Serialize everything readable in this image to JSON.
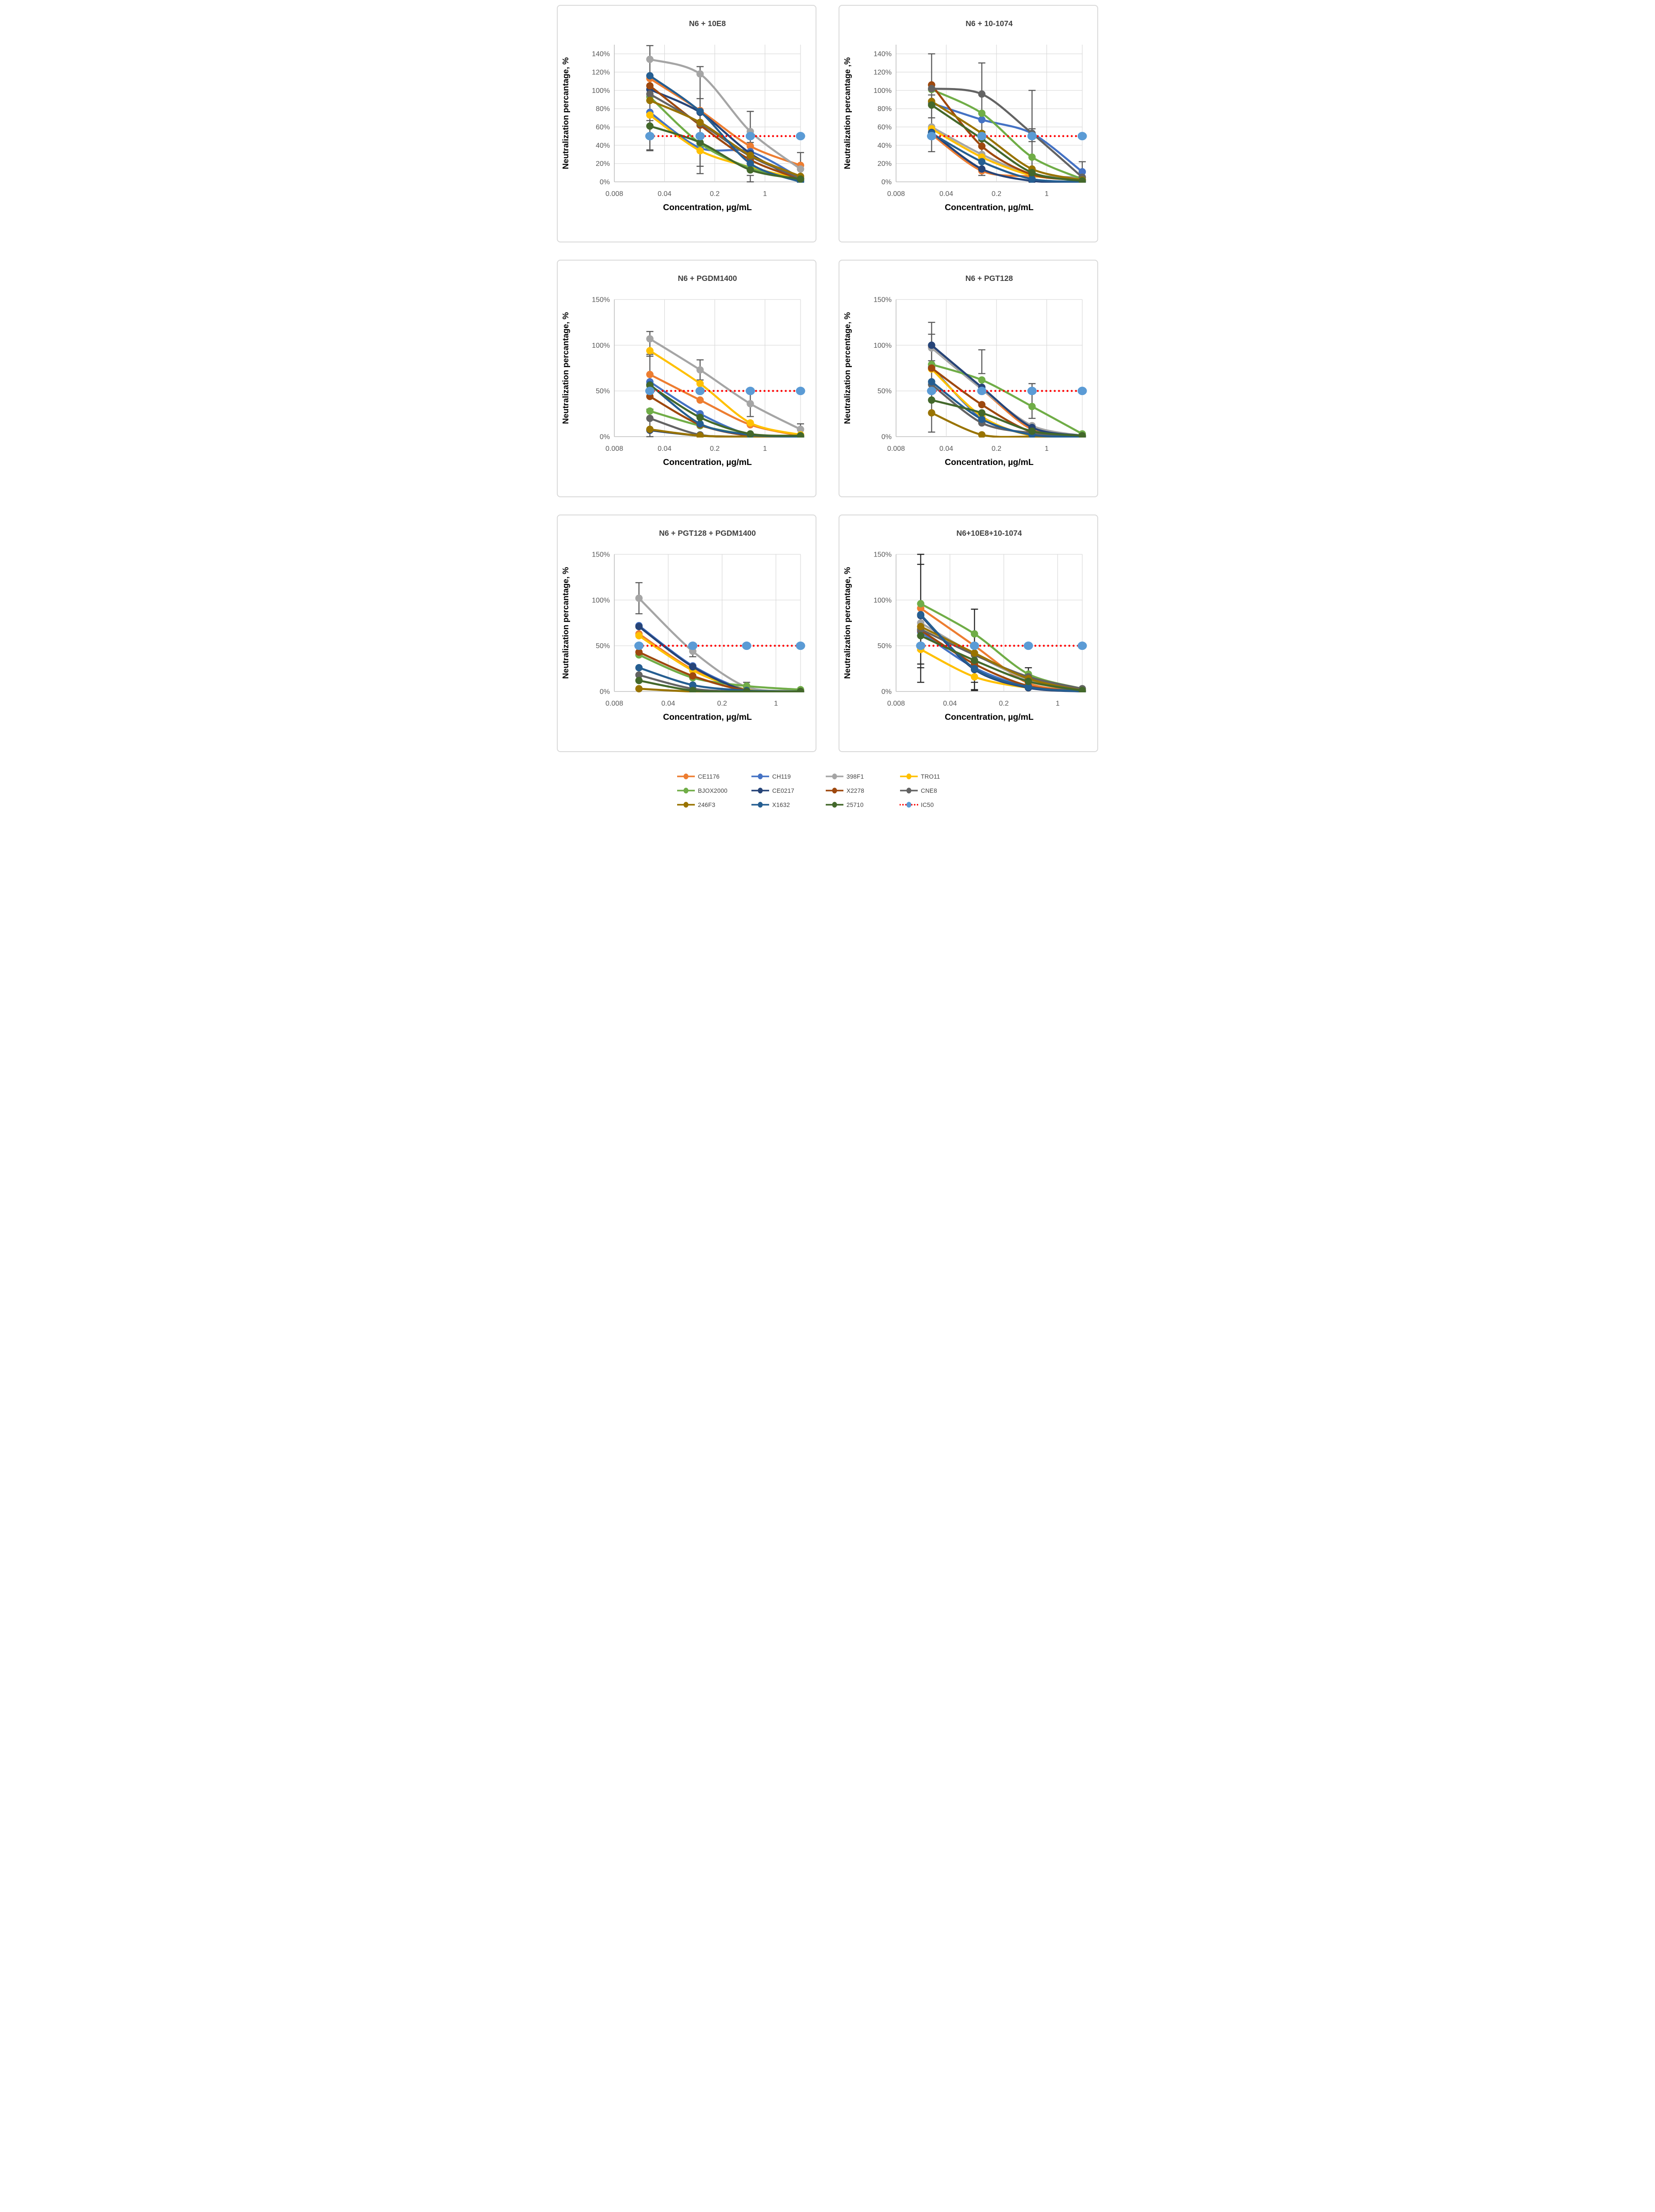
{
  "figure_title": "",
  "xlabel_shared": "Concentration, µg/mL",
  "legend": {
    "items": [
      {
        "label": "CE1176",
        "color": "#ED7D31",
        "line": "solid"
      },
      {
        "label": "CH119",
        "color": "#4472C4",
        "line": "solid"
      },
      {
        "label": "398F1",
        "color": "#A5A5A5",
        "line": "solid"
      },
      {
        "label": "TRO11",
        "color": "#FFC000",
        "line": "solid"
      },
      {
        "label": "BJOX2000",
        "color": "#70AD47",
        "line": "solid"
      },
      {
        "label": "CE0217",
        "color": "#264478",
        "line": "solid"
      },
      {
        "label": "X2278",
        "color": "#9E480E",
        "line": "solid"
      },
      {
        "label": "CNE8",
        "color": "#636363",
        "line": "solid"
      },
      {
        "label": "246F3",
        "color": "#997300",
        "line": "solid"
      },
      {
        "label": "X1632",
        "color": "#255E91",
        "line": "solid"
      },
      {
        "label": "25710",
        "color": "#43682B",
        "line": "solid"
      },
      {
        "label": "IC50",
        "color": "#FF0000",
        "line": "dotted",
        "marker_color": "#5B9BD5"
      }
    ]
  },
  "style": {
    "gridline_color": "#D9D9D9",
    "axis_color": "#BFBFBF",
    "tick_label_color": "#595959",
    "title_color": "#404040",
    "axis_title_color": "#000000"
  },
  "chart_data": [
    {
      "type": "line",
      "title": "N6 + 10E8",
      "ylabel": "Neutralization percantage, %",
      "xlabel": "Concentration, µg/mL",
      "x_scale": "log",
      "xlim": [
        0.008,
        3.125
      ],
      "x_ticks": [
        0.008,
        0.04,
        0.2,
        1
      ],
      "x_tick_labels": [
        "0.008",
        "0.04",
        "0.2",
        "1"
      ],
      "ylim": [
        0,
        150
      ],
      "y_ticks": [
        0,
        20,
        40,
        60,
        80,
        100,
        120,
        140
      ],
      "x": [
        0.025,
        0.125,
        0.625,
        3.125
      ],
      "error_color": "#595959",
      "error_bars": [
        {
          "x_index": 0,
          "low": 35,
          "high": 149
        },
        {
          "x_index": 0,
          "low": 34,
          "high": 67
        },
        {
          "x_index": 1,
          "low": 9,
          "high": 126
        },
        {
          "x_index": 1,
          "low": 17,
          "high": 91
        },
        {
          "x_index": 2,
          "low": 43,
          "high": 77
        },
        {
          "x_index": 2,
          "low": 0,
          "high": 7
        },
        {
          "x_index": 3,
          "low": 3,
          "high": 32
        },
        {
          "x_index": 3,
          "low": 0,
          "high": 6
        }
      ],
      "series": [
        {
          "name": "CE1176",
          "values": [
            113,
            78,
            39,
            18
          ]
        },
        {
          "name": "CH119",
          "values": [
            76,
            37,
            33,
            4
          ]
        },
        {
          "name": "398F1",
          "values": [
            134,
            118,
            55,
            14
          ]
        },
        {
          "name": "TRO11",
          "values": [
            73,
            34,
            16,
            3
          ]
        },
        {
          "name": "BJOX2000",
          "values": [
            93,
            42,
            15,
            2
          ]
        },
        {
          "name": "CE0217",
          "values": [
            101,
            76,
            31,
            1
          ]
        },
        {
          "name": "X2278",
          "values": [
            105,
            62,
            24,
            3
          ]
        },
        {
          "name": "CNE8",
          "values": [
            96,
            64,
            28,
            4
          ]
        },
        {
          "name": "246F3",
          "values": [
            89,
            65,
            29,
            6
          ]
        },
        {
          "name": "X1632",
          "values": [
            116,
            77,
            20,
            0
          ]
        },
        {
          "name": "25710",
          "values": [
            61,
            43,
            13,
            3
          ]
        },
        {
          "name": "IC50",
          "values": [
            50,
            50,
            50,
            50
          ]
        }
      ]
    },
    {
      "type": "line",
      "title": "N6 + 10-1074",
      "ylabel": "Neutralization percantage ,%",
      "xlabel": "Concentration, µg/mL",
      "x_scale": "log",
      "xlim": [
        0.008,
        3.125
      ],
      "x_ticks": [
        0.008,
        0.04,
        0.2,
        1
      ],
      "x_tick_labels": [
        "0.008",
        "0.04",
        "0.2",
        "1"
      ],
      "ylim": [
        0,
        150
      ],
      "y_ticks": [
        0,
        20,
        40,
        60,
        80,
        100,
        120,
        140
      ],
      "x": [
        0.025,
        0.125,
        0.625,
        3.125
      ],
      "error_color": "#595959",
      "error_bars": [
        {
          "x_index": 0,
          "low": 33,
          "high": 140
        },
        {
          "x_index": 0,
          "low": 70,
          "high": 95
        },
        {
          "x_index": 1,
          "low": 7,
          "high": 130
        },
        {
          "x_index": 1,
          "low": 45,
          "high": 55
        },
        {
          "x_index": 2,
          "low": 0,
          "high": 100
        },
        {
          "x_index": 2,
          "low": 44,
          "high": 58
        },
        {
          "x_index": 3,
          "low": 0,
          "high": 22
        }
      ],
      "series": [
        {
          "name": "CE1176",
          "values": [
            52,
            12,
            6,
            5
          ]
        },
        {
          "name": "CH119",
          "values": [
            86,
            68,
            53,
            11
          ]
        },
        {
          "name": "398F1",
          "values": [
            60,
            30,
            8,
            5
          ]
        },
        {
          "name": "TRO11",
          "values": [
            58,
            27,
            7,
            2
          ]
        },
        {
          "name": "BJOX2000",
          "values": [
            101,
            75,
            27,
            3
          ]
        },
        {
          "name": "CE0217",
          "values": [
            54,
            14,
            1,
            0
          ]
        },
        {
          "name": "X2278",
          "values": [
            106,
            39,
            8,
            2
          ]
        },
        {
          "name": "CNE8",
          "values": [
            102,
            96,
            53,
            5
          ]
        },
        {
          "name": "246F3",
          "values": [
            88,
            53,
            14,
            2
          ]
        },
        {
          "name": "X1632",
          "values": [
            53,
            22,
            3,
            0
          ]
        },
        {
          "name": "25710",
          "values": [
            84,
            47,
            10,
            1
          ]
        },
        {
          "name": "IC50",
          "values": [
            50,
            50,
            50,
            50
          ]
        }
      ]
    },
    {
      "type": "line",
      "title": "N6 + PGDM1400",
      "ylabel": "Neutralization percantage, %",
      "xlabel": "Concentration, µg/mL",
      "x_scale": "log",
      "xlim": [
        0.008,
        3.125
      ],
      "x_ticks": [
        0.008,
        0.04,
        0.2,
        1
      ],
      "x_tick_labels": [
        "0.008",
        "0.04",
        "0.2",
        "1"
      ],
      "ylim": [
        0,
        150
      ],
      "y_ticks": [
        0,
        50,
        100,
        150
      ],
      "x": [
        0.025,
        0.125,
        0.625,
        3.125
      ],
      "error_color": "#595959",
      "error_bars": [
        {
          "x_index": 0,
          "low": 88,
          "high": 115
        },
        {
          "x_index": 0,
          "low": 60,
          "high": 90
        },
        {
          "x_index": 0,
          "low": 0,
          "high": 30
        },
        {
          "x_index": 1,
          "low": 62,
          "high": 84
        },
        {
          "x_index": 2,
          "low": 22,
          "high": 50
        },
        {
          "x_index": 3,
          "low": 3,
          "high": 14
        }
      ],
      "series": [
        {
          "name": "CE1176",
          "values": [
            68,
            40,
            13,
            1
          ]
        },
        {
          "name": "CH119",
          "values": [
            60,
            25,
            2,
            0
          ]
        },
        {
          "name": "398F1",
          "values": [
            107,
            73,
            36,
            8
          ]
        },
        {
          "name": "TRO11",
          "values": [
            94,
            58,
            15,
            2
          ]
        },
        {
          "name": "BJOX2000",
          "values": [
            28,
            12,
            2,
            0
          ]
        },
        {
          "name": "CE0217",
          "values": [
            7,
            1,
            0,
            0
          ]
        },
        {
          "name": "X2278",
          "values": [
            44,
            13,
            1,
            0
          ]
        },
        {
          "name": "CNE8",
          "values": [
            20,
            2,
            0,
            0
          ]
        },
        {
          "name": "246F3",
          "values": [
            8,
            1,
            0,
            0
          ]
        },
        {
          "name": "X1632",
          "values": [
            57,
            14,
            2,
            0
          ]
        },
        {
          "name": "25710",
          "values": [
            56,
            21,
            3,
            1
          ]
        },
        {
          "name": "IC50",
          "values": [
            50,
            50,
            50,
            50
          ]
        }
      ]
    },
    {
      "type": "line",
      "title": "N6 + PGT128",
      "ylabel": "Neutralization percentage, %",
      "xlabel": "Concentration, µg/mL",
      "x_scale": "log",
      "xlim": [
        0.008,
        3.125
      ],
      "x_ticks": [
        0.008,
        0.04,
        0.2,
        1
      ],
      "x_tick_labels": [
        "0.008",
        "0.04",
        "0.2",
        "1"
      ],
      "ylim": [
        0,
        150
      ],
      "y_ticks": [
        0,
        50,
        100,
        150
      ],
      "x": [
        0.025,
        0.125,
        0.625,
        3.125
      ],
      "error_color": "#595959",
      "error_bars": [
        {
          "x_index": 0,
          "low": 5,
          "high": 125
        },
        {
          "x_index": 0,
          "low": 83,
          "high": 112
        },
        {
          "x_index": 1,
          "low": 69,
          "high": 95
        },
        {
          "x_index": 2,
          "low": 20,
          "high": 58
        }
      ],
      "series": [
        {
          "name": "CE1176",
          "values": [
            98,
            52,
            8,
            1
          ]
        },
        {
          "name": "CH119",
          "values": [
            76,
            20,
            2,
            0
          ]
        },
        {
          "name": "398F1",
          "values": [
            97,
            52,
            12,
            1
          ]
        },
        {
          "name": "TRO11",
          "values": [
            74,
            22,
            1,
            0
          ]
        },
        {
          "name": "BJOX2000",
          "values": [
            79,
            62,
            33,
            3
          ]
        },
        {
          "name": "CE0217",
          "values": [
            100,
            54,
            10,
            1
          ]
        },
        {
          "name": "X2278",
          "values": [
            75,
            35,
            5,
            0
          ]
        },
        {
          "name": "CNE8",
          "values": [
            57,
            15,
            4,
            1
          ]
        },
        {
          "name": "246F3",
          "values": [
            26,
            2,
            0,
            0
          ]
        },
        {
          "name": "X1632",
          "values": [
            60,
            19,
            2,
            0
          ]
        },
        {
          "name": "25710",
          "values": [
            40,
            26,
            6,
            1
          ]
        },
        {
          "name": "IC50",
          "values": [
            50,
            50,
            50,
            50
          ]
        }
      ]
    },
    {
      "type": "line",
      "title": "N6 + PGT128 + PGDM1400",
      "ylabel": "Neutralization percantage, %",
      "xlabel": "Concentration, µg/mL",
      "x_scale": "log",
      "xlim": [
        0.008,
        2.0833
      ],
      "x_ticks": [
        0.008,
        0.04,
        0.2,
        1
      ],
      "x_tick_labels": [
        "0.008",
        "0.04",
        "0.2",
        "1"
      ],
      "ylim": [
        0,
        150
      ],
      "y_ticks": [
        0,
        50,
        100,
        150
      ],
      "x": [
        0.0167,
        0.0833,
        0.4167,
        2.0833
      ],
      "error_color": "#595959",
      "error_bars": [
        {
          "x_index": 0,
          "low": 85,
          "high": 119
        },
        {
          "x_index": 1,
          "low": 38,
          "high": 49
        },
        {
          "x_index": 2,
          "low": 4,
          "high": 10
        }
      ],
      "series": [
        {
          "name": "CE1176",
          "values": [
            63,
            24,
            2,
            1
          ]
        },
        {
          "name": "CH119",
          "values": [
            72,
            28,
            2,
            0
          ]
        },
        {
          "name": "398F1",
          "values": [
            102,
            44,
            5,
            1
          ]
        },
        {
          "name": "TRO11",
          "values": [
            61,
            23,
            2,
            0
          ]
        },
        {
          "name": "BJOX2000",
          "values": [
            40,
            15,
            6,
            2
          ]
        },
        {
          "name": "CE0217",
          "values": [
            71,
            27,
            1,
            0
          ]
        },
        {
          "name": "X2278",
          "values": [
            43,
            17,
            1,
            0
          ]
        },
        {
          "name": "CNE8",
          "values": [
            18,
            3,
            0,
            0
          ]
        },
        {
          "name": "246F3",
          "values": [
            3,
            0,
            0,
            0
          ]
        },
        {
          "name": "X1632",
          "values": [
            26,
            7,
            1,
            0
          ]
        },
        {
          "name": "25710",
          "values": [
            12,
            1,
            0,
            0
          ]
        },
        {
          "name": "IC50",
          "values": [
            50,
            50,
            50,
            50
          ]
        }
      ]
    },
    {
      "type": "line",
      "title": "N6+10E8+10-1074",
      "ylabel": "Neutralization percantage, %",
      "xlabel": "Concentration, µg/mL",
      "x_scale": "log",
      "xlim": [
        0.008,
        2.0833
      ],
      "x_ticks": [
        0.008,
        0.04,
        0.2,
        1
      ],
      "x_tick_labels": [
        "0.008",
        "0.04",
        "0.2",
        "1"
      ],
      "ylim": [
        0,
        150
      ],
      "y_ticks": [
        0,
        50,
        100,
        150
      ],
      "x": [
        0.0167,
        0.0833,
        0.4167,
        2.0833
      ],
      "error_color": "#262626",
      "error_bars": [
        {
          "x_index": 0,
          "low": 10,
          "high": 139
        },
        {
          "x_index": 0,
          "low": 26,
          "high": 150
        },
        {
          "x_index": 0,
          "low": 30,
          "high": 45
        },
        {
          "x_index": 1,
          "low": 2,
          "high": 90
        },
        {
          "x_index": 1,
          "low": 1,
          "high": 10
        },
        {
          "x_index": 2,
          "low": 12,
          "high": 26
        }
      ],
      "series": [
        {
          "name": "CE1176",
          "values": [
            91,
            50,
            9,
            1
          ]
        },
        {
          "name": "CH119",
          "values": [
            65,
            26,
            5,
            1
          ]
        },
        {
          "name": "398F1",
          "values": [
            75,
            41,
            13,
            2
          ]
        },
        {
          "name": "TRO11",
          "values": [
            46,
            16,
            4,
            0
          ]
        },
        {
          "name": "BJOX2000",
          "values": [
            96,
            63,
            19,
            3
          ]
        },
        {
          "name": "CE0217",
          "values": [
            83,
            24,
            4,
            0
          ]
        },
        {
          "name": "X2278",
          "values": [
            67,
            30,
            6,
            0
          ]
        },
        {
          "name": "CNE8",
          "values": [
            68,
            40,
            16,
            3
          ]
        },
        {
          "name": "246F3",
          "values": [
            71,
            42,
            14,
            1
          ]
        },
        {
          "name": "X1632",
          "values": [
            84,
            25,
            5,
            0
          ]
        },
        {
          "name": "25710",
          "values": [
            61,
            34,
            11,
            1
          ]
        },
        {
          "name": "IC50",
          "values": [
            50,
            50,
            50,
            50
          ]
        }
      ]
    }
  ]
}
